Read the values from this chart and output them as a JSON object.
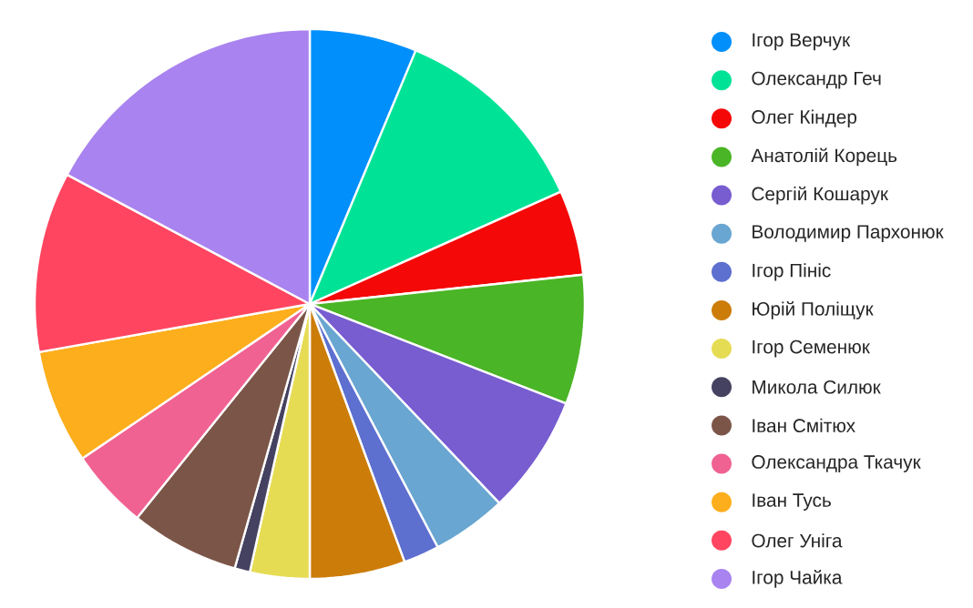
{
  "chart_data": {
    "type": "pie",
    "legend": "right",
    "categories": [
      "Ігор Верчук",
      "Олександр Геч",
      "Олег Кіндер",
      "Анатолій Корець",
      "Сергій Кошарук",
      "Володимир Пархонюк",
      "Ігор Пініс",
      "Юрій Поліщук",
      "Ігор Семенюк",
      "Микола Силюк",
      "Іван Смітюх",
      "Олександра Ткачук",
      "Іван Тусь",
      "Олег Уніга",
      "Ігор Чайка"
    ],
    "values": [
      6.3,
      12.0,
      5.0,
      7.6,
      7.0,
      4.4,
      2.1,
      5.6,
      3.5,
      0.9,
      6.4,
      4.7,
      6.7,
      10.6,
      17.2
    ],
    "colors": [
      "#008ffb",
      "#00e396",
      "#f50808",
      "#4ab526",
      "#775dd0",
      "#69a6d1",
      "#5d6fcf",
      "#cc7c08",
      "#e6dc54",
      "#454160",
      "#7b5648",
      "#f06292",
      "#fdae1c",
      "#ff4560",
      "#a983ef"
    ]
  }
}
